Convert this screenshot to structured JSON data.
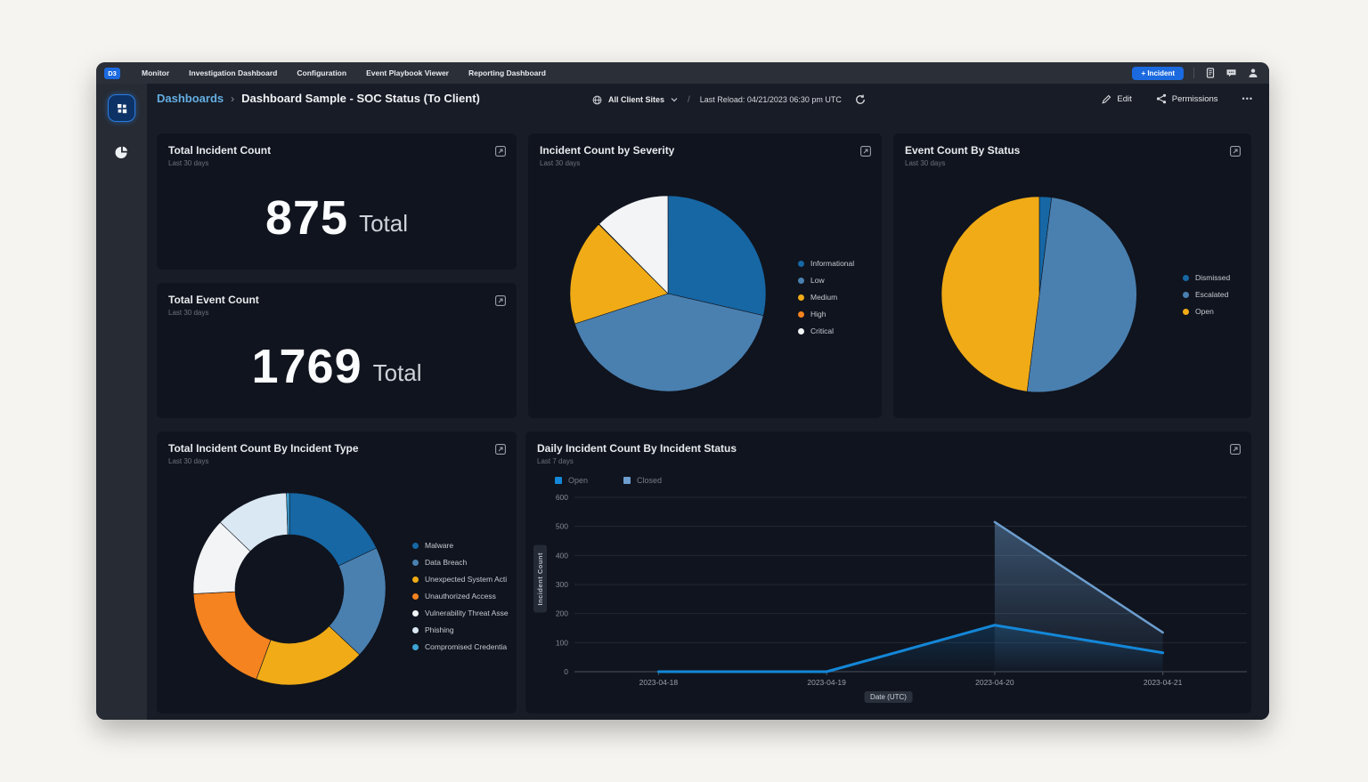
{
  "navbar": {
    "logo": "D3",
    "items": [
      "Monitor",
      "Investigation Dashboard",
      "Configuration",
      "Event Playbook Viewer",
      "Reporting Dashboard"
    ],
    "incident_button": "+ Incident"
  },
  "header": {
    "breadcrumb_root": "Dashboards",
    "breadcrumb_sep": "›",
    "title": "Dashboard Sample - SOC Status (To Client)",
    "site_selector": "All Client Sites",
    "slash": "/",
    "last_reload": "Last Reload: 04/21/2023 06:30 pm UTC",
    "edit_label": "Edit",
    "permissions_label": "Permissions",
    "more": "•••"
  },
  "cards": {
    "total_incidents": {
      "title": "Total Incident Count",
      "subtitle": "Last 30 days",
      "value": "875",
      "unit": "Total"
    },
    "total_events": {
      "title": "Total Event Count",
      "subtitle": "Last 30 days",
      "value": "1769",
      "unit": "Total"
    },
    "severity": {
      "title": "Incident Count by Severity",
      "subtitle": "Last 30 days"
    },
    "status": {
      "title": "Event Count By Status",
      "subtitle": "Last 30 days"
    },
    "incident_type": {
      "title": "Total Incident Count By Incident Type",
      "subtitle": "Last 30 days"
    },
    "daily": {
      "title": "Daily Incident Count By Incident Status",
      "subtitle": "Last 7 days"
    }
  },
  "colors": {
    "accent_blue": "#1b6ae0",
    "breadcrumb_link": "#64aee3",
    "card_bg": "#10141e",
    "content_bg": "#181c26",
    "navbar_bg": "#2b2f38",
    "sidebar_bg": "#272b33"
  },
  "chart_data": [
    {
      "id": "severity",
      "type": "pie",
      "title": "Incident Count by Severity",
      "labels": [
        "Informational",
        "Low",
        "Medium",
        "High",
        "Critical"
      ],
      "values": [
        28.6,
        41.4,
        17.5,
        0.1,
        12.4
      ],
      "colors": [
        "#1667a4",
        "#4a80b0",
        "#f0ab16",
        "#f5831f",
        "#f2f4f6"
      ],
      "legend_position": "right",
      "unit": "percent"
    },
    {
      "id": "status",
      "type": "pie",
      "title": "Event Count By Status",
      "labels": [
        "Dismissed",
        "Escalated",
        "Open"
      ],
      "values": [
        2,
        50,
        48
      ],
      "colors": [
        "#1667a4",
        "#4a80b0",
        "#f0ab16"
      ],
      "legend_position": "right",
      "unit": "percent"
    },
    {
      "id": "incident_type",
      "type": "donut",
      "title": "Total Incident Count By Incident Type",
      "labels": [
        "Malware",
        "Data Breach",
        "Unexpected System Acti",
        "Unauthorized Access",
        "Vulnerability Threat Asse",
        "Phishing",
        "Compromised Credentia"
      ],
      "values": [
        18,
        19,
        18.6,
        18.6,
        13,
        12.3,
        0.5
      ],
      "colors": [
        "#1667a4",
        "#4a80b0",
        "#f0ab16",
        "#f5831f",
        "#f2f4f6",
        "#d9e8f3",
        "#3ea4d4"
      ],
      "legend_position": "right",
      "unit": "percent"
    },
    {
      "id": "daily",
      "type": "line",
      "title": "Daily Incident Count By Incident Status",
      "x": [
        "2023-04-18",
        "2023-04-19",
        "2023-04-20",
        "2023-04-21"
      ],
      "series": [
        {
          "name": "Open",
          "values": [
            0,
            0,
            160,
            65
          ],
          "color": "#1487d8",
          "width": 3,
          "fill_opacity": 0.22
        },
        {
          "name": "Closed",
          "values": [
            null,
            null,
            515,
            135
          ],
          "color": "#6d9ecf",
          "width": 2.5,
          "fill_opacity": 0.45
        }
      ],
      "ylim": [
        0,
        600
      ],
      "yticks": [
        0,
        100,
        200,
        300,
        400,
        500,
        600
      ],
      "ylabel": "Incident Count",
      "xlabel": "Date (UTC)",
      "grid": true,
      "legend_position": "top-left"
    }
  ]
}
